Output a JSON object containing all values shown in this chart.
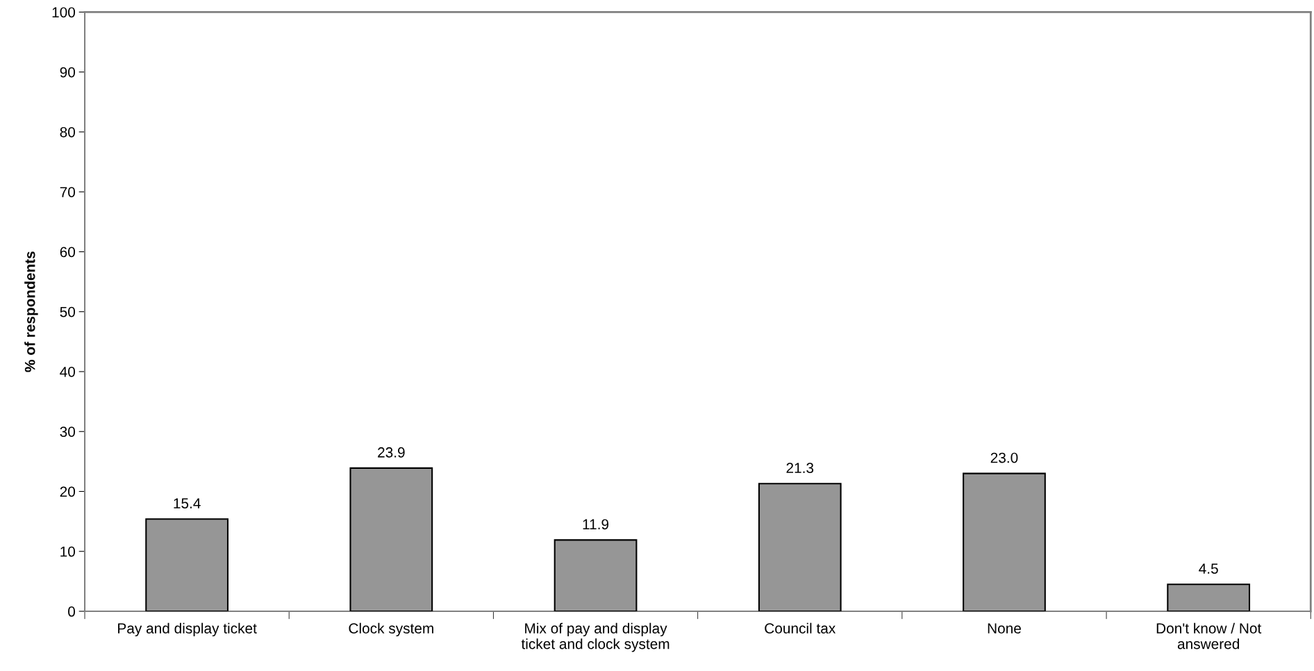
{
  "chart_data": {
    "type": "bar",
    "ylabel": "% of respondents",
    "categories": [
      "Pay and display ticket",
      "Clock system",
      "Mix of pay and display\nticket and clock system",
      "Council tax",
      "None",
      "Don't know / Not\nanswered"
    ],
    "values": [
      15.4,
      23.9,
      11.9,
      21.3,
      23.0,
      4.5
    ],
    "color": "#969696",
    "ylim": [
      0,
      100
    ],
    "yticks": [
      0,
      10,
      20,
      30,
      40,
      50,
      60,
      70,
      80,
      90,
      100
    ],
    "data_labels": true,
    "value_labels": [
      "15.4",
      "23.9",
      "11.9",
      "21.3",
      "23.0",
      "4.5"
    ],
    "grid": false
  }
}
